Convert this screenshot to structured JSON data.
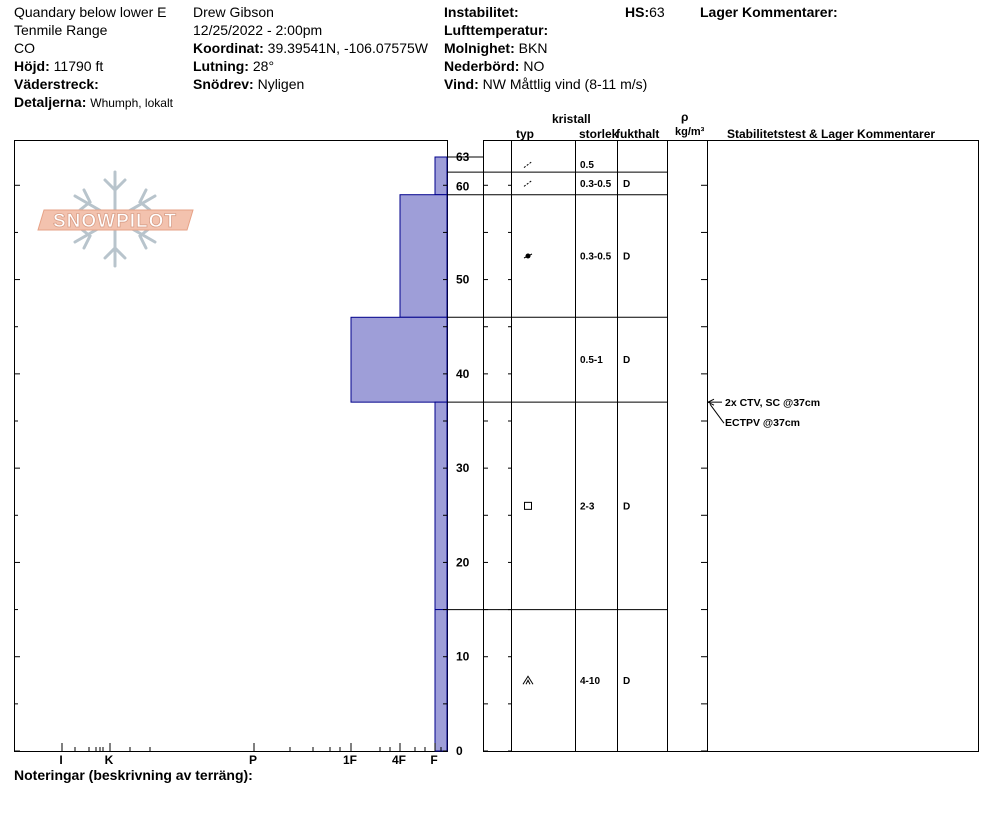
{
  "header": {
    "location": "Quandary below lower E",
    "range": "Tenmile Range",
    "state": "CO",
    "elevation_label": "Höjd:",
    "elevation_value": "11790 ft",
    "aspect_label": "Väderstreck:",
    "aspect_value": "",
    "details_label": "Detaljerna:",
    "details_value": "Whumph, lokalt",
    "observer": "Drew Gibson",
    "datetime": "12/25/2022 - 2:00pm",
    "coord_label": "Koordinat:",
    "coord_value": "39.39541N, -106.07575W",
    "slope_label": "Lutning:",
    "slope_value": "28°",
    "drift_label": "Snödrev:",
    "drift_value": "Nyligen",
    "instability_label": "Instabilitet:",
    "instability_value": "",
    "hs_label": "HS:",
    "hs_value": "63",
    "airtemp_label": "Lufttemperatur:",
    "airtemp_value": "",
    "sky_label": "Molnighet:",
    "sky_value": "BKN",
    "precip_label": "Nederbörd:",
    "precip_value": "NO",
    "wind_label": "Vind:",
    "wind_value": "NW Måttlig vind (8-11 m/s)",
    "layer_comments_label": "Lager Kommentarer:"
  },
  "logo": {
    "text": "SNOWPILOT"
  },
  "columns": {
    "crystal": "kristall",
    "type": "typ",
    "size": "storlek",
    "moisture": "fukthalt",
    "rho": "ρ",
    "density_unit": "kg/m³",
    "stability": "Stabilitetstest & Lager Kommentarer"
  },
  "footer": {
    "notes_label": "Noteringar (beskrivning av terräng):"
  },
  "colors": {
    "hardness_fill": "#9e9ed8",
    "hardness_stroke": "#00008b"
  },
  "chart_data": {
    "type": "bar",
    "ylim": [
      0,
      63
    ],
    "y_ticks": [
      0,
      10,
      20,
      30,
      40,
      50,
      60,
      63
    ],
    "hardness_ticks": [
      "I",
      "K",
      "P",
      "1F",
      "4F",
      "F"
    ],
    "layers": [
      {
        "top": 63,
        "bottom": 59,
        "hardness": "F",
        "grain": "precipitation-particle-icon",
        "size": "0.5",
        "moisture": ""
      },
      {
        "top": 59,
        "bottom": 46,
        "hardness": "4F",
        "grain": "decomposing-fragment-icon",
        "size": "0.3-0.5",
        "moisture": "D"
      },
      {
        "top": 46,
        "bottom": 37,
        "hardness": "1F",
        "grain": "",
        "size": "0.5-1",
        "moisture": "D"
      },
      {
        "top": 37,
        "bottom": 15,
        "hardness": "F",
        "grain": "faceted-crystal-icon",
        "size": "2-3",
        "moisture": "D"
      },
      {
        "top": 15,
        "bottom": 0,
        "hardness": "F",
        "grain": "depth-hoar-icon",
        "size": "4-10",
        "moisture": "D"
      }
    ],
    "grain_rows": [
      {
        "top": 63,
        "bottom": 61.4,
        "grain": "precipitation-particle-icon",
        "size": "0.5",
        "moisture": ""
      },
      {
        "top": 61.4,
        "bottom": 59,
        "grain": "precipitation-particle-icon",
        "size": "0.3-0.5",
        "moisture": "D"
      },
      {
        "top": 59,
        "bottom": 46,
        "grain": "decomposing-fragment-icon",
        "size": "0.3-0.5",
        "moisture": "D"
      },
      {
        "top": 46,
        "bottom": 37,
        "grain": "",
        "size": "0.5-1",
        "moisture": "D"
      },
      {
        "top": 37,
        "bottom": 15,
        "grain": "faceted-crystal-icon",
        "size": "2-3",
        "moisture": "D"
      },
      {
        "top": 15,
        "bottom": 0,
        "grain": "depth-hoar-icon",
        "size": "4-10",
        "moisture": "D"
      }
    ],
    "tests": [
      {
        "depth": 37,
        "text": "2x CTV, SC @37cm"
      },
      {
        "depth": 37,
        "text": "ECTPV @37cm"
      }
    ]
  }
}
